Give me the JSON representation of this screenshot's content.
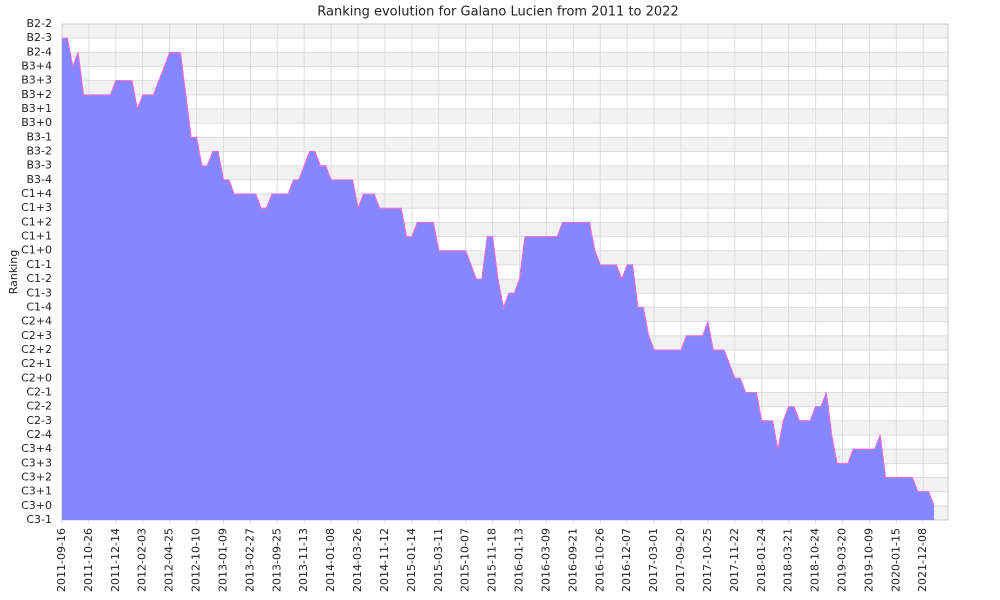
{
  "chart_data": {
    "type": "area",
    "title": "Ranking evolution for Galano Lucien from 2011 to 2022",
    "y_label": "Ranking",
    "categories": [
      "2011-09-16",
      null,
      null,
      null,
      null,
      "2011-10-26",
      null,
      null,
      null,
      null,
      "2011-12-14",
      null,
      null,
      null,
      null,
      "2012-02-03",
      null,
      null,
      null,
      null,
      "2012-04-25",
      null,
      null,
      null,
      null,
      "2012-10-10",
      null,
      null,
      null,
      null,
      "2013-01-09",
      null,
      null,
      null,
      null,
      "2013-02-27",
      null,
      null,
      null,
      null,
      "2013-09-25",
      null,
      null,
      null,
      null,
      "2013-11-13",
      null,
      null,
      null,
      null,
      "2014-01-08",
      null,
      null,
      null,
      null,
      "2014-03-26",
      null,
      null,
      null,
      null,
      "2014-11-12",
      null,
      null,
      null,
      null,
      "2015-01-14",
      null,
      null,
      null,
      null,
      "2015-03-11",
      null,
      null,
      null,
      null,
      "2015-10-07",
      null,
      null,
      null,
      null,
      "2015-11-18",
      null,
      null,
      null,
      null,
      "2016-01-13",
      null,
      null,
      null,
      null,
      "2016-03-09",
      null,
      null,
      null,
      null,
      "2016-09-21",
      null,
      null,
      null,
      null,
      "2016-10-26",
      null,
      null,
      null,
      null,
      "2016-12-07",
      null,
      null,
      null,
      null,
      "2017-03-01",
      null,
      null,
      null,
      null,
      "2017-09-20",
      null,
      null,
      null,
      null,
      "2017-10-25",
      null,
      null,
      null,
      null,
      "2017-11-22",
      null,
      null,
      null,
      null,
      "2018-01-24",
      null,
      null,
      null,
      null,
      "2018-03-21",
      null,
      null,
      null,
      null,
      "2018-10-24",
      null,
      null,
      null,
      null,
      "2019-03-20",
      null,
      null,
      null,
      null,
      "2019-10-09",
      null,
      null,
      null,
      null,
      "2020-01-15",
      null,
      null,
      null,
      null,
      "2021-12-08",
      null,
      null
    ],
    "values": [
      34,
      34,
      32,
      33,
      30,
      30,
      30,
      30,
      30,
      30,
      31,
      31,
      31,
      31,
      29,
      30,
      30,
      30,
      31,
      32,
      33,
      33,
      33,
      30,
      27,
      27,
      25,
      25,
      26,
      26,
      24,
      24,
      23,
      23,
      23,
      23,
      23,
      22,
      22,
      23,
      23,
      23,
      23,
      24,
      24,
      25,
      26,
      26,
      25,
      25,
      24,
      24,
      24,
      24,
      24,
      22,
      23,
      23,
      23,
      22,
      22,
      22,
      22,
      22,
      20,
      20,
      21,
      21,
      21,
      21,
      19,
      19,
      19,
      19,
      19,
      19,
      18,
      17,
      17,
      20,
      20,
      17,
      15,
      16,
      16,
      17,
      20,
      20,
      20,
      20,
      20,
      20,
      20,
      21,
      21,
      21,
      21,
      21,
      21,
      19,
      18,
      18,
      18,
      18,
      17,
      18,
      18,
      15,
      15,
      13,
      12,
      12,
      12,
      12,
      12,
      12,
      13,
      13,
      13,
      13,
      14,
      12,
      12,
      12,
      11,
      10,
      10,
      9,
      9,
      9,
      7,
      7,
      7,
      5,
      7,
      8,
      8,
      7,
      7,
      7,
      8,
      8,
      9,
      6,
      4,
      4,
      4,
      5,
      5,
      5,
      5,
      5,
      6,
      3,
      3,
      3,
      3,
      3,
      3,
      2,
      2,
      2,
      1
    ],
    "color": "#7f7fff",
    "line_color": "#ff66cc",
    "ylim": [
      0,
      35
    ],
    "yticks": [
      {
        "value": 0,
        "label": "C3-1"
      },
      {
        "value": 1,
        "label": "C3+0"
      },
      {
        "value": 2,
        "label": "C3+1"
      },
      {
        "value": 3,
        "label": "C3+2"
      },
      {
        "value": 4,
        "label": "C3+3"
      },
      {
        "value": 5,
        "label": "C3+4"
      },
      {
        "value": 6,
        "label": "C2-4"
      },
      {
        "value": 7,
        "label": "C2-3"
      },
      {
        "value": 8,
        "label": "C2-2"
      },
      {
        "value": 9,
        "label": "C2-1"
      },
      {
        "value": 10,
        "label": "C2+0"
      },
      {
        "value": 11,
        "label": "C2+1"
      },
      {
        "value": 12,
        "label": "C2+2"
      },
      {
        "value": 13,
        "label": "C2+3"
      },
      {
        "value": 14,
        "label": "C2+4"
      },
      {
        "value": 15,
        "label": "C1-4"
      },
      {
        "value": 16,
        "label": "C1-3"
      },
      {
        "value": 17,
        "label": "C1-2"
      },
      {
        "value": 18,
        "label": "C1-1"
      },
      {
        "value": 19,
        "label": "C1+0"
      },
      {
        "value": 20,
        "label": "C1+1"
      },
      {
        "value": 21,
        "label": "C1+2"
      },
      {
        "value": 22,
        "label": "C1+3"
      },
      {
        "value": 23,
        "label": "C1+4"
      },
      {
        "value": 24,
        "label": "B3-4"
      },
      {
        "value": 25,
        "label": "B3-3"
      },
      {
        "value": 26,
        "label": "B3-2"
      },
      {
        "value": 27,
        "label": "B3-1"
      },
      {
        "value": 28,
        "label": "B3+0"
      },
      {
        "value": 29,
        "label": "B3+1"
      },
      {
        "value": 30,
        "label": "B3+2"
      },
      {
        "value": 31,
        "label": "B3+3"
      },
      {
        "value": 32,
        "label": "B3+4"
      },
      {
        "value": 33,
        "label": "B2-4"
      },
      {
        "value": 34,
        "label": "B2-3"
      },
      {
        "value": 35,
        "label": "B2-2"
      }
    ],
    "grid": true
  }
}
